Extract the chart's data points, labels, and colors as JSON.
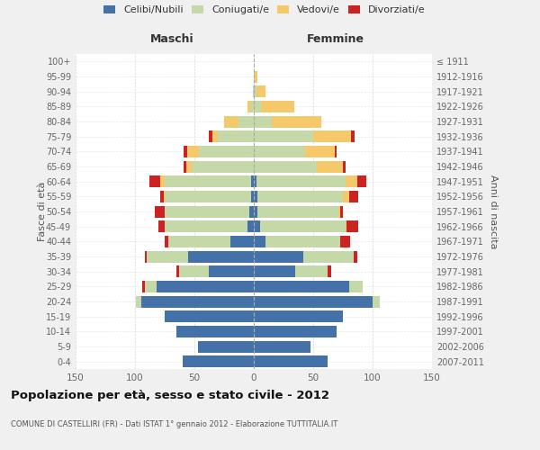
{
  "age_groups": [
    "0-4",
    "5-9",
    "10-14",
    "15-19",
    "20-24",
    "25-29",
    "30-34",
    "35-39",
    "40-44",
    "45-49",
    "50-54",
    "55-59",
    "60-64",
    "65-69",
    "70-74",
    "75-79",
    "80-84",
    "85-89",
    "90-94",
    "95-99",
    "100+"
  ],
  "birth_years": [
    "2007-2011",
    "2002-2006",
    "1997-2001",
    "1992-1996",
    "1987-1991",
    "1982-1986",
    "1977-1981",
    "1972-1976",
    "1967-1971",
    "1962-1966",
    "1957-1961",
    "1952-1956",
    "1947-1951",
    "1942-1946",
    "1937-1941",
    "1932-1936",
    "1927-1931",
    "1922-1926",
    "1917-1921",
    "1912-1916",
    "≤ 1911"
  ],
  "male": {
    "celibi": [
      60,
      47,
      65,
      75,
      95,
      82,
      38,
      55,
      20,
      5,
      4,
      2,
      2,
      0,
      0,
      0,
      0,
      0,
      0,
      0,
      0
    ],
    "coniugati": [
      0,
      0,
      0,
      0,
      4,
      10,
      25,
      35,
      52,
      70,
      71,
      72,
      73,
      52,
      46,
      30,
      13,
      2,
      1,
      0,
      0
    ],
    "vedovi": [
      0,
      0,
      0,
      0,
      0,
      0,
      0,
      0,
      0,
      0,
      0,
      2,
      4,
      5,
      10,
      5,
      12,
      3,
      0,
      0,
      0
    ],
    "divorziati": [
      0,
      0,
      0,
      0,
      0,
      2,
      2,
      2,
      3,
      5,
      8,
      3,
      9,
      2,
      3,
      3,
      0,
      0,
      0,
      0,
      0
    ]
  },
  "female": {
    "nubili": [
      62,
      48,
      70,
      75,
      100,
      80,
      35,
      42,
      10,
      5,
      3,
      3,
      2,
      0,
      0,
      0,
      0,
      0,
      0,
      0,
      0
    ],
    "coniugate": [
      0,
      0,
      0,
      0,
      6,
      12,
      27,
      42,
      63,
      72,
      68,
      72,
      75,
      53,
      43,
      50,
      15,
      6,
      2,
      1,
      0
    ],
    "vedove": [
      0,
      0,
      0,
      0,
      0,
      0,
      0,
      0,
      0,
      1,
      2,
      5,
      10,
      22,
      25,
      32,
      42,
      28,
      8,
      2,
      0
    ],
    "divorziate": [
      0,
      0,
      0,
      0,
      0,
      0,
      3,
      3,
      8,
      10,
      2,
      8,
      8,
      2,
      2,
      3,
      0,
      0,
      0,
      0,
      0
    ]
  },
  "colors": {
    "celibi": "#4472a8",
    "coniugati": "#c5d9a8",
    "vedovi": "#f5c96a",
    "divorziati": "#cc2222"
  },
  "xlim": 150,
  "title": "Popolazione per età, sesso e stato civile - 2012",
  "subtitle": "COMUNE DI CASTELLIRI (FR) - Dati ISTAT 1° gennaio 2012 - Elaborazione TUTTITALIA.IT",
  "ylabel_left": "Fasce di età",
  "ylabel_right": "Anni di nascita",
  "xlabel_left": "Maschi",
  "xlabel_right": "Femmine",
  "bg_color": "#f0f0f0",
  "plot_bg": "#ffffff"
}
